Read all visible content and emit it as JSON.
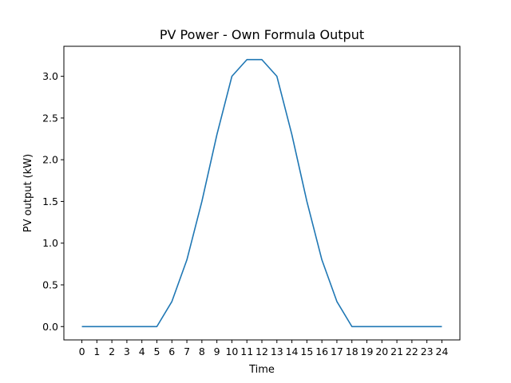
{
  "chart_data": {
    "type": "line",
    "title": "PV Power - Own Formula Output",
    "xlabel": "Time",
    "ylabel": "PV output (kW)",
    "xlim": [
      -1.2,
      25.2
    ],
    "ylim": [
      -0.16,
      3.36
    ],
    "xticks": [
      0,
      1,
      2,
      3,
      4,
      5,
      6,
      7,
      8,
      9,
      10,
      11,
      12,
      13,
      14,
      15,
      16,
      17,
      18,
      19,
      20,
      21,
      22,
      23,
      24
    ],
    "yticks": [
      0.0,
      0.5,
      1.0,
      1.5,
      2.0,
      2.5,
      3.0
    ],
    "ytick_labels": [
      "0.0",
      "0.5",
      "1.0",
      "1.5",
      "2.0",
      "2.5",
      "3.0"
    ],
    "grid": false,
    "series": [
      {
        "color": "#1f77b4",
        "x": [
          0,
          1,
          2,
          3,
          4,
          5,
          6,
          7,
          8,
          9,
          10,
          11,
          12,
          13,
          14,
          15,
          16,
          17,
          18,
          19,
          20,
          21,
          22,
          23,
          24
        ],
        "y": [
          0,
          0,
          0,
          0,
          0,
          0,
          0.3,
          0.8,
          1.5,
          2.3,
          3.0,
          3.2,
          3.2,
          3.0,
          2.3,
          1.5,
          0.8,
          0.3,
          0,
          0,
          0,
          0,
          0,
          0,
          0
        ]
      }
    ]
  }
}
